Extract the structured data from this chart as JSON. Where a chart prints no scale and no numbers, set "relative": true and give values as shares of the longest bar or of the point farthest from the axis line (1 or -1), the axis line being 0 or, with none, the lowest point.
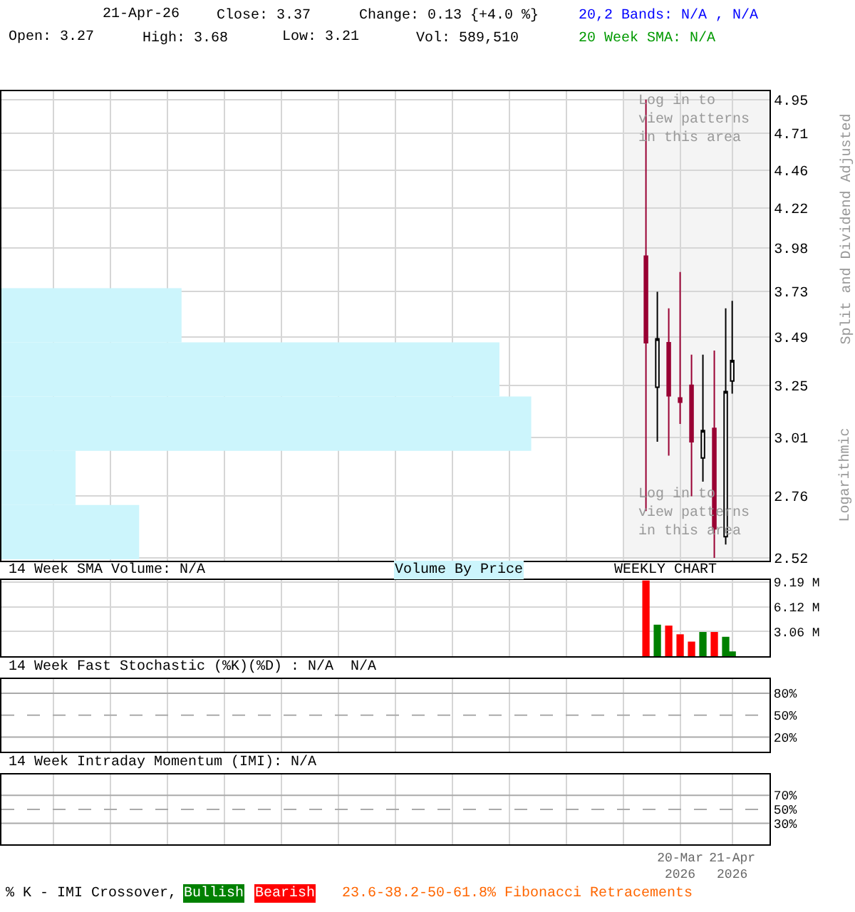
{
  "chart_data": [
    {
      "type": "candlestick",
      "ylabel": "Split and Dividend Adjusted",
      "log": true,
      "grid": true,
      "tick_labels": "y",
      "annotations": [
        "21-Apr-26",
        "Close: 3.37",
        "Change: 0.13 {+4.0 %}",
        "Open: 3.27",
        "High: 3.68",
        "Low: 3.21",
        "Vol: 589,510",
        "20,2 Bands: N/A , N/A",
        "20 Week SMA: N/A",
        "Log in to\nview patterns\nin this area",
        "Log in to\nview patterns\nin this area",
        "Logarithmic"
      ],
      "x": [
        "2026-02-27",
        "2026-03-06",
        "2026-03-13",
        "2026-03-20",
        "2026-03-27",
        "2026-04-03",
        "2026-04-10",
        "2026-04-17",
        "2026-04-21"
      ],
      "ohlc": [
        [
          3.93,
          4.95,
          2.7,
          3.46
        ],
        [
          3.24,
          3.73,
          2.99,
          3.48
        ],
        [
          3.46,
          3.64,
          2.93,
          3.2
        ],
        [
          3.19,
          3.84,
          3.07,
          3.17
        ],
        [
          3.25,
          3.4,
          2.76,
          2.99
        ],
        [
          2.92,
          3.4,
          2.82,
          3.04
        ],
        [
          3.05,
          3.42,
          2.52,
          2.63
        ],
        [
          2.6,
          3.64,
          2.57,
          3.22
        ],
        [
          3.27,
          3.68,
          3.21,
          3.37
        ]
      ],
      "colors": [
        "#990033",
        "#ffffff",
        "#990033",
        "#990033",
        "#990033",
        "#ffffff",
        "#990033",
        "#ffffff",
        "#ffffff"
      ],
      "bands": [
        {
          "axis": "x",
          "from": "2026-02-13",
          "to": "2026-05-14",
          "color": "#f4f4f4"
        }
      ],
      "xlim": [
        "2025-01-27",
        "2026-05-14"
      ],
      "xticks": [
        {
          "value": "2025-02-28",
          "label": null
        },
        {
          "value": "2025-04-04",
          "label": null
        },
        {
          "value": "2025-05-09",
          "label": null
        },
        {
          "value": "2025-06-13",
          "label": null
        },
        {
          "value": "2025-07-18",
          "label": null
        },
        {
          "value": "2025-08-22",
          "label": null
        },
        {
          "value": "2025-09-26",
          "label": null
        },
        {
          "value": "2025-10-31",
          "label": null
        },
        {
          "value": "2025-12-05",
          "label": null
        },
        {
          "value": "2026-01-09",
          "label": null
        },
        {
          "value": "2026-02-13",
          "label": null
        },
        {
          "value": "2026-03-20",
          "label": null
        },
        {
          "value": "2026-04-21",
          "label": null
        }
      ],
      "ylim": [
        2.51,
        5.01
      ],
      "yticks": [
        2.52,
        2.76,
        3.01,
        3.25,
        3.49,
        3.73,
        3.98,
        4.22,
        4.46,
        4.71,
        4.95
      ]
    },
    {
      "type": "bar",
      "orientation": "horizontal",
      "relative": true,
      "tick_labels": false,
      "legend_title": "Volume By Price",
      "color": "#ccf5fc",
      "categories": [
        null,
        null,
        null,
        null,
        null
      ],
      "values": [
        0.34,
        0.94,
        1,
        0.14,
        0.26
      ]
    },
    {
      "type": "bar",
      "title": "14 Week SMA Volume: N/A",
      "annotations": [
        "WEEKLY CHART"
      ],
      "grid": true,
      "tick_labels": "y",
      "x": [
        "2026-02-27",
        "2026-03-06",
        "2026-03-13",
        "2026-03-20",
        "2026-03-27",
        "2026-04-03",
        "2026-04-10",
        "2026-04-17",
        "2026-04-21"
      ],
      "values": [
        9.4,
        3.9,
        3.8,
        2.7,
        1.8,
        3.0,
        3.0,
        2.4,
        0.6
      ],
      "colors": [
        "#ff0000",
        "#008000",
        "#ff0000",
        "#ff0000",
        "#ff0000",
        "#008000",
        "#ff0000",
        "#008000",
        "#008000"
      ],
      "xlim": [
        "2025-01-27",
        "2026-05-14"
      ],
      "xticks": [
        {
          "value": "2025-02-28",
          "label": null
        },
        {
          "value": "2025-04-04",
          "label": null
        },
        {
          "value": "2025-05-09",
          "label": null
        },
        {
          "value": "2025-06-13",
          "label": null
        },
        {
          "value": "2025-07-18",
          "label": null
        },
        {
          "value": "2025-08-22",
          "label": null
        },
        {
          "value": "2025-09-26",
          "label": null
        },
        {
          "value": "2025-10-31",
          "label": null
        },
        {
          "value": "2025-12-05",
          "label": null
        },
        {
          "value": "2026-01-09",
          "label": null
        },
        {
          "value": "2026-02-13",
          "label": null
        },
        {
          "value": "2026-03-20",
          "label": null
        },
        {
          "value": "2026-04-21",
          "label": null
        }
      ],
      "ylim": [
        0,
        9.4
      ],
      "yticks": [
        {
          "value": 3.06,
          "label": "3.06 M"
        },
        {
          "value": 6.12,
          "label": "6.12 M"
        },
        {
          "value": 9.19,
          "label": "9.19 M"
        }
      ]
    },
    {
      "type": "line",
      "title": "14 Week Fast Stochastic (%K)(%D) : N/A  N/A",
      "grid": "x",
      "tick_labels": "y",
      "ref_lines": [
        {
          "axis": "y",
          "value": 80,
          "color": "#aaaaaa"
        },
        {
          "axis": "y",
          "value": 50,
          "color": "#aaaaaa",
          "line_style": "dashed"
        },
        {
          "axis": "y",
          "value": 20,
          "color": "#aaaaaa"
        }
      ],
      "xlim": [
        "2025-01-27",
        "2026-05-14"
      ],
      "xticks": [
        {
          "value": "2025-02-28",
          "label": null
        },
        {
          "value": "2025-04-04",
          "label": null
        },
        {
          "value": "2025-05-09",
          "label": null
        },
        {
          "value": "2025-06-13",
          "label": null
        },
        {
          "value": "2025-07-18",
          "label": null
        },
        {
          "value": "2025-08-22",
          "label": null
        },
        {
          "value": "2025-09-26",
          "label": null
        },
        {
          "value": "2025-10-31",
          "label": null
        },
        {
          "value": "2025-12-05",
          "label": null
        },
        {
          "value": "2026-01-09",
          "label": null
        },
        {
          "value": "2026-02-13",
          "label": null
        },
        {
          "value": "2026-03-20",
          "label": null
        },
        {
          "value": "2026-04-21",
          "label": null
        }
      ],
      "ylim": [
        0,
        100
      ],
      "yticks": [
        {
          "value": 20,
          "label": "20%"
        },
        {
          "value": 50,
          "label": "50%"
        },
        {
          "value": 80,
          "label": "80%"
        }
      ]
    },
    {
      "type": "line",
      "title": "14 Week Intraday Momentum (IMI): N/A",
      "grid": "x",
      "annotations": [
        "% K - IMI Crossover,",
        "Bullish",
        "Bearish",
        "23.6-38.2-50-61.8% Fibonacci Retracements"
      ],
      "ref_lines": [
        {
          "axis": "y",
          "value": 70,
          "color": "#aaaaaa"
        },
        {
          "axis": "y",
          "value": 50,
          "color": "#aaaaaa",
          "line_style": "dashed"
        },
        {
          "axis": "y",
          "value": 30,
          "color": "#aaaaaa"
        }
      ],
      "xlim": [
        "2025-01-27",
        "2026-05-14"
      ],
      "xticks": [
        {
          "value": "2025-02-28",
          "label": null
        },
        {
          "value": "2025-04-04",
          "label": null
        },
        {
          "value": "2025-05-09",
          "label": null
        },
        {
          "value": "2025-06-13",
          "label": null
        },
        {
          "value": "2025-07-18",
          "label": null
        },
        {
          "value": "2025-08-22",
          "label": null
        },
        {
          "value": "2025-09-26",
          "label": null
        },
        {
          "value": "2025-10-31",
          "label": null
        },
        {
          "value": "2025-12-05",
          "label": null
        },
        {
          "value": "2026-01-09",
          "label": null
        },
        {
          "value": "2026-02-13",
          "label": null
        },
        {
          "value": "2026-03-20",
          "label": "20-Mar\n2026"
        },
        {
          "value": "2026-04-21",
          "label": "21-Apr\n2026"
        }
      ],
      "ylim": [
        0,
        100
      ],
      "yticks": [
        {
          "value": 30,
          "label": "30%"
        },
        {
          "value": 50,
          "label": "50%"
        },
        {
          "value": 70,
          "label": "70%"
        }
      ]
    }
  ]
}
